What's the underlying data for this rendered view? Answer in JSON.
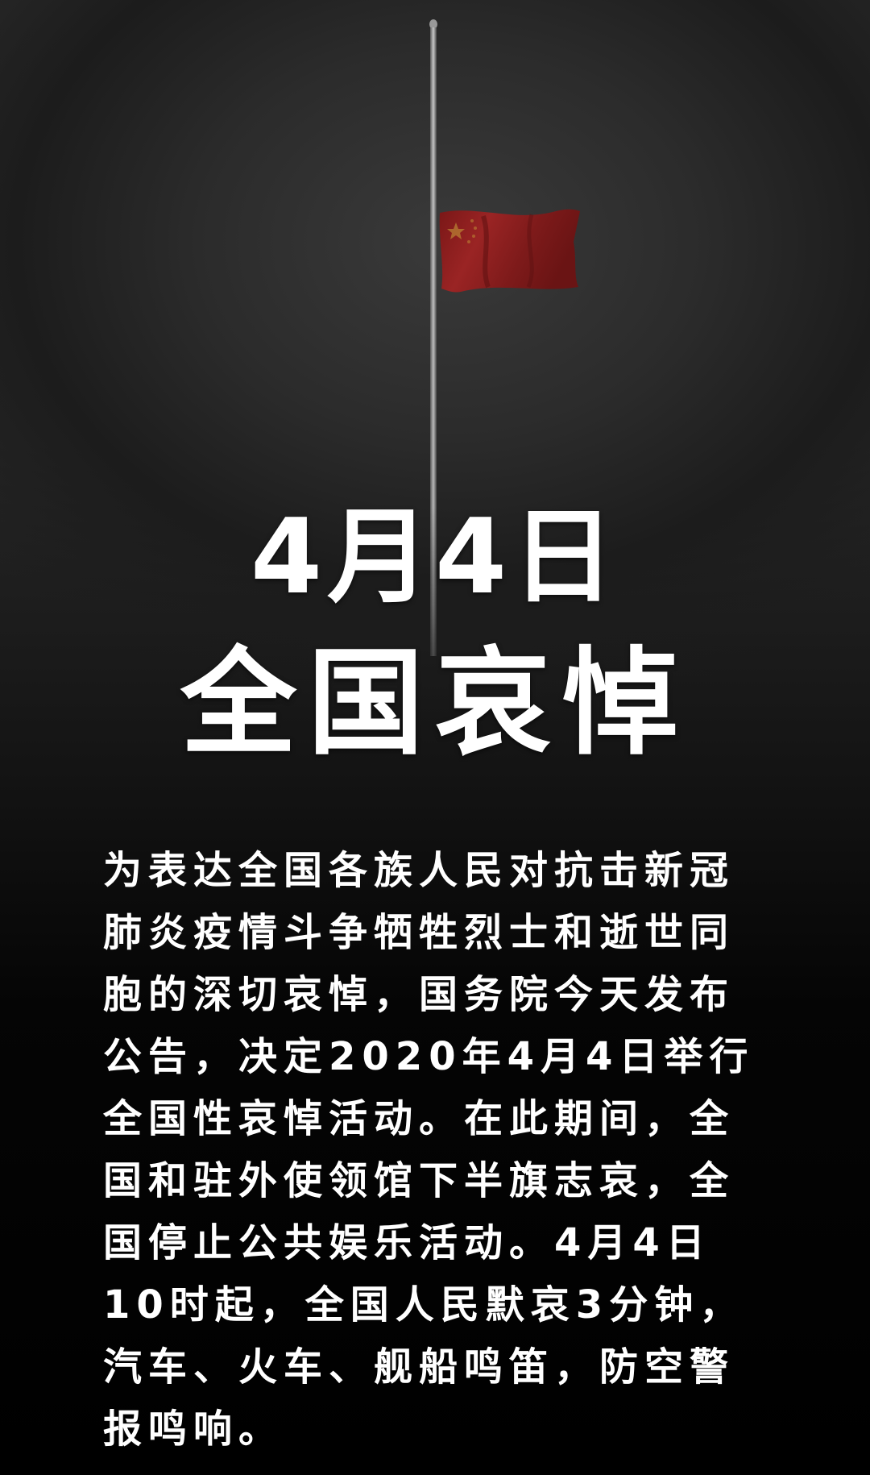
{
  "headline": {
    "date": "4月4日",
    "title": "全国哀悼"
  },
  "body": {
    "lines": [
      "为表达全国各族人民对抗击新冠",
      "肺炎疫情斗争牺牲烈士和逝世同",
      "胞的深切哀悼，国务院今天发布",
      "公告，决定2020年4月4日举行",
      "全国性哀悼活动。在此期间，全",
      "国和驻外使领馆下半旗志哀，全",
      "国停止公共娱乐活动。4月4日",
      "10时起，全国人民默哀3分钟，",
      "汽车、火车、舰船鸣笛，防空警",
      "报鸣响。"
    ]
  },
  "colors": {
    "flag_red": "#8e1c1c",
    "flag_star": "#c8a23a",
    "text": "#ffffff",
    "background_top": "#2a2a2a",
    "background_bottom": "#000000"
  },
  "icons": {
    "flag": "half-mast-flag-icon"
  }
}
